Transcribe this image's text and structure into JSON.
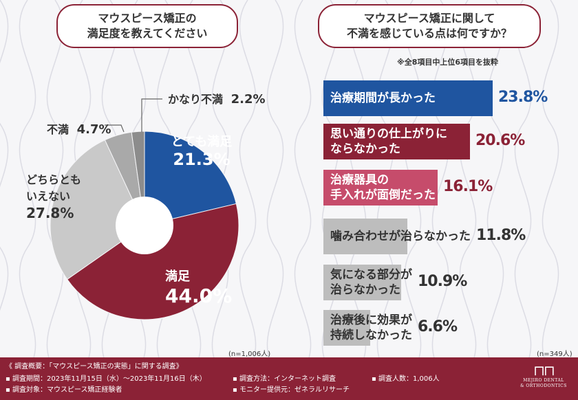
{
  "left_title": [
    "マウスピース矯正の",
    "満足度を教えてください"
  ],
  "right_title": [
    "マウスピース矯正に関して",
    "不満を感じている点は何ですか？"
  ],
  "right_note": "※全8項目中上位6項目を抜粋",
  "colors": {
    "accent": "#8b2236",
    "navy": "#1f55a0",
    "pink": "#c64c6b",
    "grayDark": "#8c8c8c",
    "grayMid": "#a9a9a9",
    "grayLight": "#c9c9c9",
    "grayBar": "#bdbdbd"
  },
  "chart_data": [
    {
      "type": "pie",
      "title": "マウスピース矯正の満足度を教えてください",
      "n": "(n=1,006人)",
      "slices": [
        {
          "label": "とても満足",
          "value": 21.3,
          "display": "21.3%"
        },
        {
          "label": "満足",
          "value": 44.0,
          "display": "44.0%"
        },
        {
          "label": "どちらともいえない",
          "value": 27.8,
          "display": "27.8%"
        },
        {
          "label": "不満",
          "value": 4.7,
          "display": "4.7%"
        },
        {
          "label": "かなり不満",
          "value": 2.2,
          "display": "2.2%"
        }
      ]
    },
    {
      "type": "bar",
      "title": "マウスピース矯正に関して不満を感じている点は何ですか？",
      "n": "(n=349人)",
      "categories": [
        "治療期間が長かった",
        "思い通りの仕上がりにならなかった",
        "治療器具の手入れが面倒だった",
        "噛み合わせが治らなかった",
        "気になる部分が治らなかった",
        "治療後に効果が持続しなかった"
      ],
      "values": [
        23.8,
        20.6,
        16.1,
        11.8,
        10.9,
        6.6
      ],
      "display": [
        "23.8%",
        "20.6%",
        "16.1%",
        "11.8%",
        "10.9%",
        "6.6%"
      ]
    }
  ],
  "pie_labels": {
    "s0": [
      "とても満足",
      "21.3%"
    ],
    "s1": [
      "満足",
      "44.0%"
    ],
    "s2": [
      "どちらとも",
      "いえない",
      "27.8%"
    ],
    "s3": [
      "不満",
      "4.7%"
    ],
    "s4": [
      "かなり不満",
      "2.2%"
    ]
  },
  "bar_labels": [
    [
      "治療期間が長かった"
    ],
    [
      "思い通りの仕上がりに",
      "ならなかった"
    ],
    [
      "治療器具の",
      "手入れが面倒だった"
    ],
    [
      "噛み合わせが治らなかった"
    ],
    [
      "気になる部分が",
      "治らなかった"
    ],
    [
      "治療後に効果が",
      "持続しなかった"
    ]
  ],
  "footer": {
    "l1": "《 調査概要：「マウスピース矯正の実態」に関する調査》",
    "l2": "▪ 調査期間：2023年11月15日（水）～2023年11月16日（木）",
    "l2b": "▪ 調査方法：インターネット調査",
    "l2c": "▪ 調査人数：1,006人",
    "l3": "▪ 調査対象：マウスピース矯正経験者",
    "l3b": "▪ モニター提供元：ゼネラルリサーチ",
    "logo1": "MEJIRO DENTAL",
    "logo2": "& ORTHODONTICS"
  }
}
